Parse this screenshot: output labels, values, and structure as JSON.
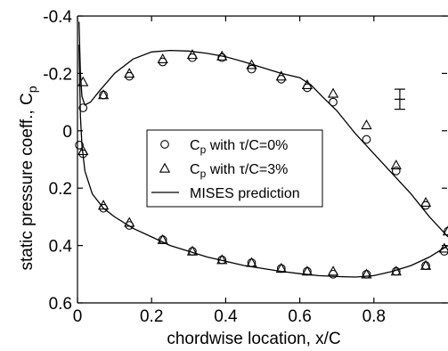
{
  "chart_data": {
    "type": "scatter",
    "xlabel": "chordwise location, x/C",
    "ylabel": "static pressure coeff., C",
    "ylabel_sub": "p",
    "xlim": [
      0,
      1
    ],
    "ylim": [
      -0.4,
      0.6
    ],
    "y_inverted": true,
    "grid": false,
    "legend_position": "center",
    "xticks": [
      0,
      0.2,
      0.4,
      0.6,
      0.8
    ],
    "xtick_labels": [
      "0",
      "0.2",
      "0.4",
      "0.6",
      "0.8"
    ],
    "yticks": [
      -0.4,
      -0.2,
      0,
      0.2,
      0.4,
      0.6
    ],
    "ytick_labels": [
      "-0.4",
      "-0.2",
      "0",
      "0.2",
      "0.4",
      "0.6"
    ],
    "legend": [
      {
        "marker": "circle",
        "pre": "C",
        "sub": "p",
        "post": " with τ/C=0%"
      },
      {
        "marker": "triangle",
        "pre": "C",
        "sub": "p",
        "post": " with τ/C=3%"
      },
      {
        "marker": "line",
        "pre": "MISES prediction",
        "sub": "",
        "post": ""
      }
    ],
    "error_bar": {
      "x": 0.87,
      "y": -0.11,
      "half_range": 0.035
    },
    "series": [
      {
        "name": "C",
        "name_sub": "p",
        "name_post": " with τ/C=0%",
        "marker": "circle",
        "upper": {
          "x": [
            0.005,
            0.015,
            0.07,
            0.14,
            0.23,
            0.31,
            0.39,
            0.47,
            0.55,
            0.62,
            0.69,
            0.78,
            0.86,
            0.94,
            1.0
          ],
          "y": [
            0.05,
            -0.08,
            -0.125,
            -0.19,
            -0.24,
            -0.255,
            -0.255,
            -0.215,
            -0.18,
            -0.15,
            -0.1,
            0.03,
            0.14,
            0.26,
            0.35
          ]
        },
        "lower": {
          "x": [
            0.015,
            0.07,
            0.14,
            0.23,
            0.31,
            0.39,
            0.47,
            0.55,
            0.62,
            0.69,
            0.78,
            0.86,
            0.94,
            0.99
          ],
          "y": [
            0.08,
            0.27,
            0.33,
            0.38,
            0.42,
            0.45,
            0.46,
            0.48,
            0.49,
            0.5,
            0.5,
            0.49,
            0.47,
            0.42
          ]
        }
      },
      {
        "name": "C",
        "name_sub": "p",
        "name_post": " with τ/C=3%",
        "marker": "triangle",
        "upper": {
          "x": [
            0.015,
            0.07,
            0.14,
            0.23,
            0.31,
            0.39,
            0.47,
            0.55,
            0.62,
            0.69,
            0.78,
            0.86,
            0.94,
            1.0
          ],
          "y": [
            -0.17,
            -0.125,
            -0.2,
            -0.25,
            -0.265,
            -0.26,
            -0.23,
            -0.19,
            -0.16,
            -0.13,
            -0.02,
            0.12,
            0.25,
            0.35
          ]
        },
        "lower": {
          "x": [
            0.015,
            0.07,
            0.14,
            0.23,
            0.31,
            0.39,
            0.47,
            0.55,
            0.62,
            0.69,
            0.78,
            0.86,
            0.94,
            0.99
          ],
          "y": [
            0.07,
            0.26,
            0.32,
            0.38,
            0.42,
            0.45,
            0.46,
            0.48,
            0.49,
            0.49,
            0.5,
            0.49,
            0.47,
            0.41
          ]
        }
      },
      {
        "name": "MISES prediction",
        "marker": "line",
        "upper": {
          "x": [
            0.004,
            0.008,
            0.012,
            0.02,
            0.035,
            0.06,
            0.1,
            0.15,
            0.2,
            0.25,
            0.3,
            0.35,
            0.4,
            0.45,
            0.5,
            0.55,
            0.6,
            0.63,
            0.66,
            0.7,
            0.75,
            0.8,
            0.85,
            0.9,
            0.95,
            1.0
          ],
          "y": [
            -0.38,
            -0.2,
            -0.12,
            -0.09,
            -0.1,
            -0.14,
            -0.2,
            -0.25,
            -0.275,
            -0.28,
            -0.278,
            -0.27,
            -0.258,
            -0.24,
            -0.22,
            -0.2,
            -0.185,
            -0.16,
            -0.12,
            -0.07,
            0.01,
            0.08,
            0.15,
            0.22,
            0.3,
            0.37
          ]
        },
        "lower": {
          "x": [
            0.004,
            0.008,
            0.012,
            0.02,
            0.04,
            0.07,
            0.1,
            0.15,
            0.2,
            0.25,
            0.3,
            0.35,
            0.4,
            0.45,
            0.5,
            0.55,
            0.6,
            0.65,
            0.7,
            0.75,
            0.8,
            0.85,
            0.9,
            0.95,
            1.0
          ],
          "y": [
            -0.3,
            -0.05,
            0.05,
            0.14,
            0.22,
            0.27,
            0.3,
            0.34,
            0.37,
            0.4,
            0.42,
            0.44,
            0.455,
            0.47,
            0.48,
            0.49,
            0.498,
            0.505,
            0.508,
            0.51,
            0.505,
            0.49,
            0.47,
            0.44,
            0.4
          ]
        }
      }
    ]
  }
}
